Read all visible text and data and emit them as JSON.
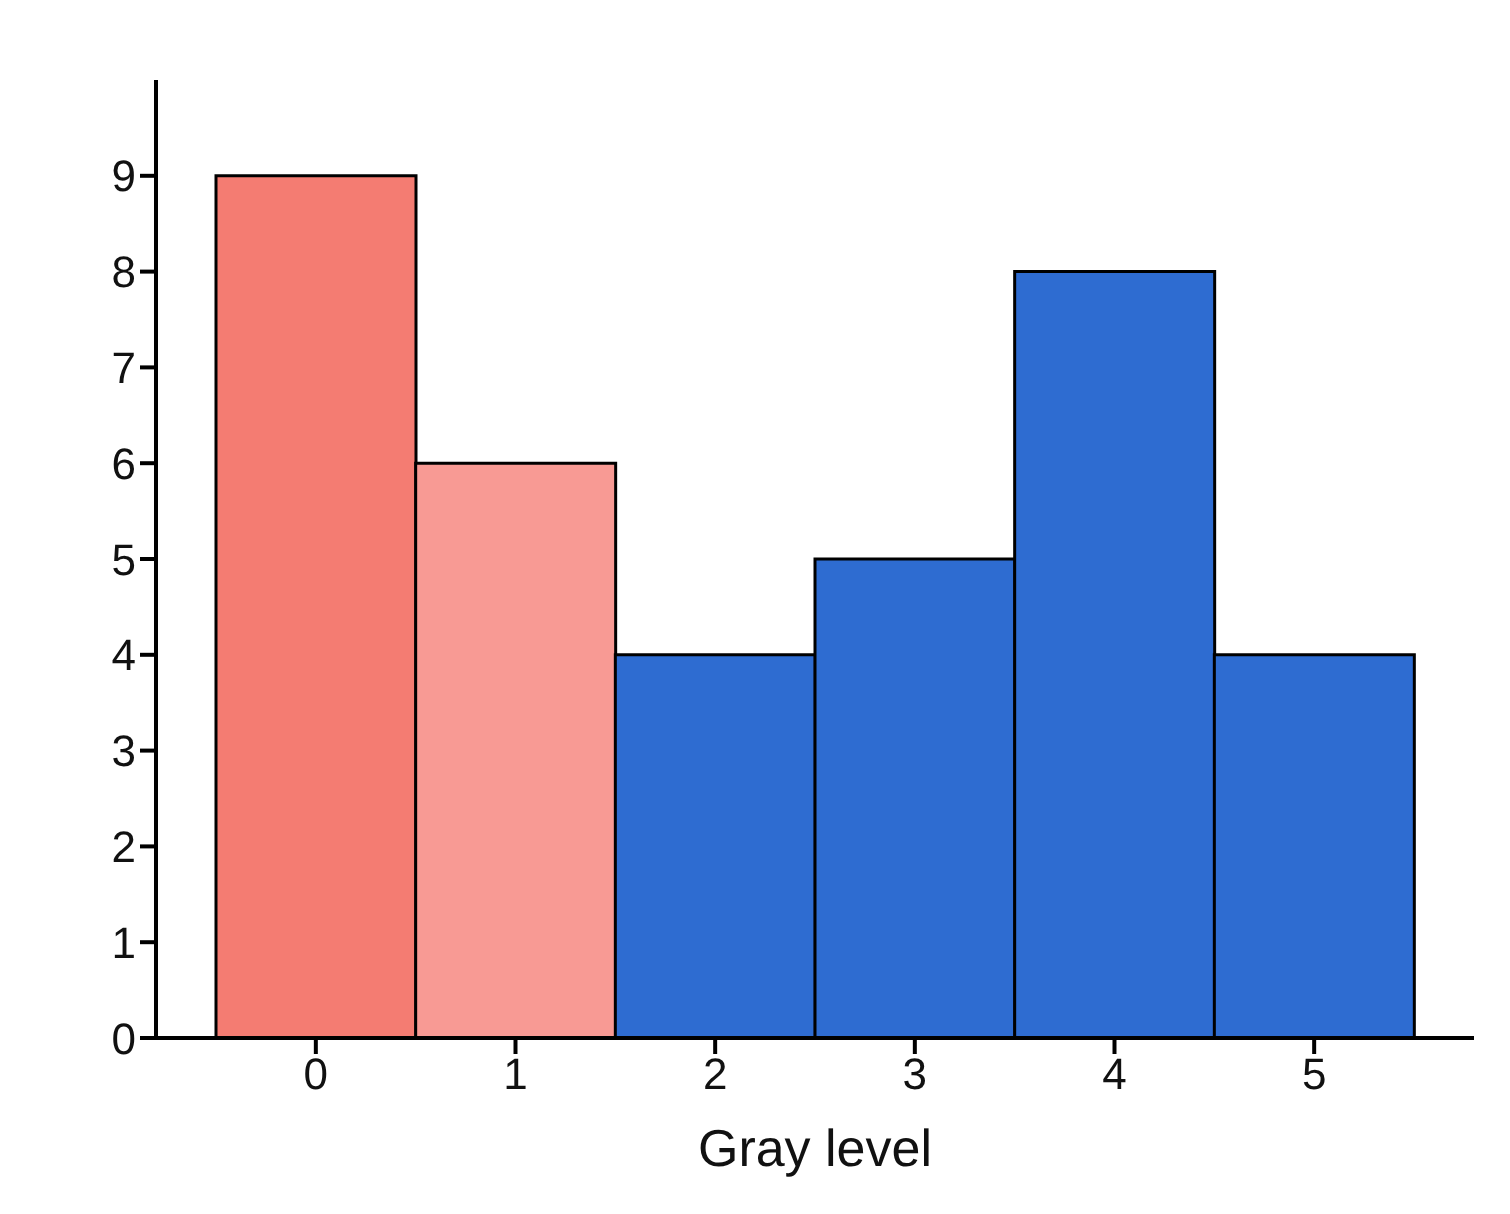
{
  "chart_data": {
    "type": "bar",
    "xlabel": "Gray level",
    "categories": [
      "0",
      "1",
      "2",
      "3",
      "4",
      "5"
    ],
    "values": [
      9,
      6,
      4,
      5,
      8,
      4
    ],
    "colors": [
      "#f47c72",
      "#f89a94",
      "#2e6cd1",
      "#2e6cd1",
      "#2e6cd1",
      "#2e6cd1"
    ],
    "ylim": [
      0,
      10
    ],
    "yticks": [
      0,
      1,
      2,
      3,
      4,
      5,
      6,
      7,
      8,
      9
    ]
  }
}
